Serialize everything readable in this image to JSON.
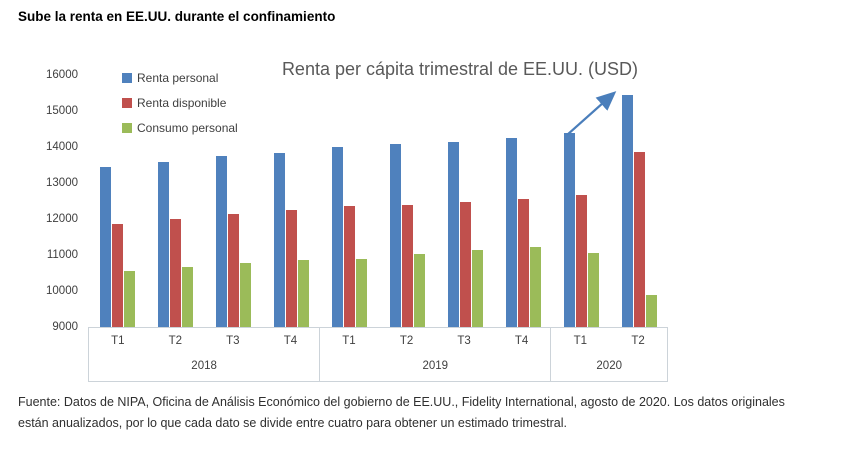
{
  "page": {
    "title": "Sube la renta en EE.UU. durante el confinamiento",
    "footnote_lines": [
      "Fuente: Datos de NIPA, Oficina de Análisis Económico del gobierno de EE.UU., Fidelity International, agosto de 2020. Los datos originales",
      "están anualizados, por lo que cada dato se divide entre cuatro para obtener un estimado trimestral."
    ]
  },
  "chart_data": {
    "type": "bar",
    "title": "Renta per cápita trimestral de EE.UU. (USD)",
    "categories": [
      "T1",
      "T2",
      "T3",
      "T4",
      "T1",
      "T2",
      "T3",
      "T4",
      "T1",
      "T2"
    ],
    "year_groups": [
      {
        "label": "2018",
        "span": 4
      },
      {
        "label": "2019",
        "span": 4
      },
      {
        "label": "2020",
        "span": 2
      }
    ],
    "series": [
      {
        "name": "Renta personal",
        "color": "#4F81BD",
        "values": [
          13440,
          13590,
          13760,
          13840,
          13990,
          14080,
          14140,
          14240,
          14380,
          15450
        ]
      },
      {
        "name": "Renta disponible",
        "color": "#C0504D",
        "values": [
          11860,
          12010,
          12130,
          12250,
          12350,
          12400,
          12480,
          12560,
          12670,
          13870
        ]
      },
      {
        "name": "Consumo personal",
        "color": "#9BBB59",
        "values": [
          10560,
          10680,
          10780,
          10850,
          10890,
          11040,
          11140,
          11210,
          11050,
          9890
        ]
      }
    ],
    "ylim": [
      9000,
      16000
    ],
    "ytick_step": 1000,
    "yticks": [
      16000,
      15000,
      14000,
      13000,
      12000,
      11000,
      10000,
      9000
    ],
    "xlabel": "",
    "ylabel": "",
    "grid": false,
    "legend_position": "top-left",
    "annotation": {
      "type": "arrow",
      "color": "#4A7EBB",
      "target": "2020 T2 Renta personal"
    }
  }
}
